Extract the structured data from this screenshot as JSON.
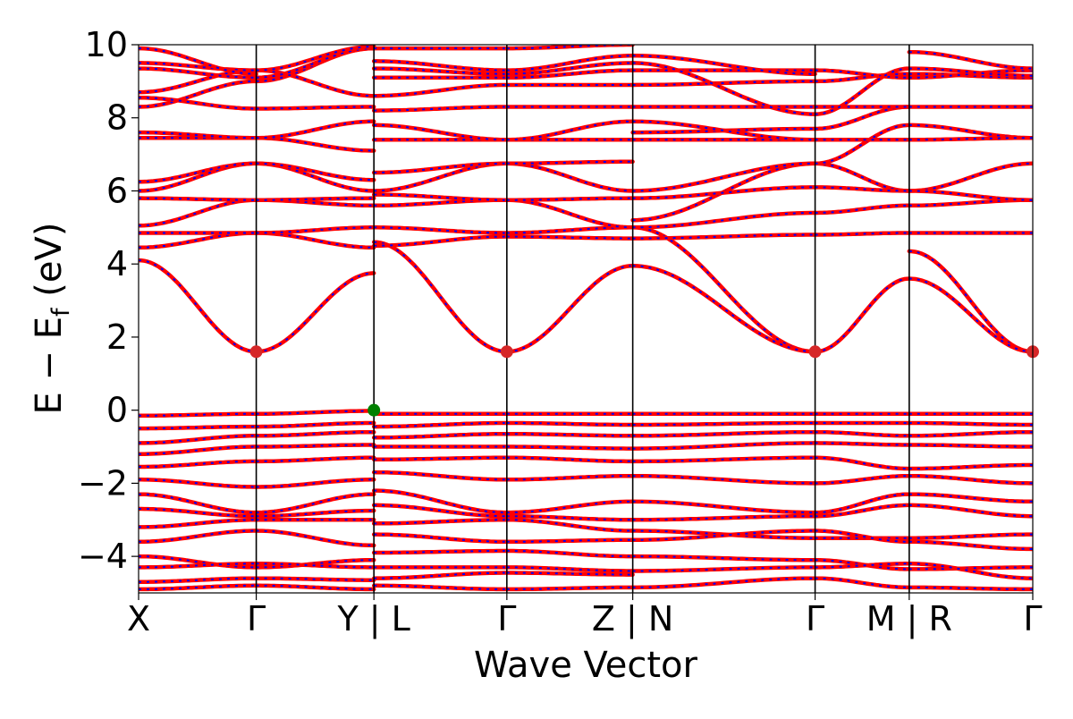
{
  "chart_data": {
    "type": "line",
    "title": "",
    "xlabel": "Wave Vector",
    "ylabel": "E − E",
    "ylabel_sub": "f",
    "ylabel_unit": " (eV)",
    "ylim": [
      -5,
      10
    ],
    "yticks": [
      -4,
      -2,
      0,
      2,
      4,
      6,
      8,
      10
    ],
    "ytick_labels": [
      "−4",
      "−2",
      "0",
      "2",
      "4",
      "6",
      "8",
      "10"
    ],
    "grid": false,
    "kpath_ticks": [
      {
        "label": "X",
        "x": 0.0
      },
      {
        "label": "Γ",
        "x": 1.0
      },
      {
        "label": "Y | L",
        "x": 2.0
      },
      {
        "label": "Γ",
        "x": 3.13
      },
      {
        "label": "Z | N",
        "x": 4.2
      },
      {
        "label": "Γ",
        "x": 5.75
      },
      {
        "label": "M | R",
        "x": 6.55
      },
      {
        "label": "Γ",
        "x": 7.6
      }
    ],
    "xlim": [
      0,
      7.6
    ],
    "colors": {
      "band_main": "#ff0000",
      "band_overlay": "#0000ff",
      "cbm": "#d62728",
      "vbm": "#008000"
    },
    "cbm_points": [
      {
        "x": 1.0,
        "y": 1.6
      },
      {
        "x": 3.13,
        "y": 1.6
      },
      {
        "x": 5.75,
        "y": 1.6
      },
      {
        "x": 7.6,
        "y": 1.6
      }
    ],
    "vbm_point": {
      "x": 2.0,
      "y": 0.0
    },
    "segments": [
      {
        "from": "X",
        "to": "Γ",
        "x0": 0.0,
        "x1": 1.0,
        "bands": [
          [
            4.1,
            1.6
          ],
          [
            -0.15,
            -0.1
          ],
          [
            -0.5,
            -0.45
          ],
          [
            -0.9,
            -0.7
          ],
          [
            -1.2,
            -1.0
          ],
          [
            -1.55,
            -1.4
          ],
          [
            -1.9,
            -2.1
          ],
          [
            -2.3,
            -2.8
          ],
          [
            -2.7,
            -2.9
          ],
          [
            -3.2,
            -3.0
          ],
          [
            -3.6,
            -3.3
          ],
          [
            -4.0,
            -4.3
          ],
          [
            -4.3,
            -4.2
          ],
          [
            -4.7,
            -4.6
          ],
          [
            -4.9,
            -4.8
          ],
          [
            4.45,
            4.85
          ],
          [
            4.85,
            4.85
          ],
          [
            5.05,
            5.75
          ],
          [
            5.8,
            5.75
          ],
          [
            6.0,
            6.75
          ],
          [
            6.25,
            6.75
          ],
          [
            7.45,
            7.45
          ],
          [
            7.6,
            7.45
          ],
          [
            8.3,
            9.0
          ],
          [
            8.55,
            8.25
          ],
          [
            8.7,
            9.3
          ],
          [
            9.35,
            9.1
          ],
          [
            9.5,
            9.3
          ],
          [
            9.9,
            9.2
          ]
        ]
      },
      {
        "from": "Γ",
        "to": "Y",
        "x0": 1.0,
        "x1": 2.0,
        "bands": [
          [
            1.6,
            3.75
          ],
          [
            -0.1,
            -0.02
          ],
          [
            -0.45,
            -0.35
          ],
          [
            -0.7,
            -0.6
          ],
          [
            -1.0,
            -0.95
          ],
          [
            -1.4,
            -1.3
          ],
          [
            -2.1,
            -1.9
          ],
          [
            -2.8,
            -2.3
          ],
          [
            -2.9,
            -2.75
          ],
          [
            -3.0,
            -3.0
          ],
          [
            -3.3,
            -3.7
          ],
          [
            -4.3,
            -4.1
          ],
          [
            -4.2,
            -4.3
          ],
          [
            -4.6,
            -4.65
          ],
          [
            -4.8,
            -4.9
          ],
          [
            4.85,
            4.45
          ],
          [
            4.85,
            5.0
          ],
          [
            5.75,
            5.6
          ],
          [
            5.75,
            5.8
          ],
          [
            6.75,
            6.0
          ],
          [
            6.75,
            6.3
          ],
          [
            7.45,
            7.1
          ],
          [
            7.45,
            7.9
          ],
          [
            9.0,
            9.9
          ],
          [
            8.25,
            8.3
          ],
          [
            9.3,
            8.6
          ],
          [
            9.1,
            9.9
          ],
          [
            9.3,
            9.95
          ]
        ]
      },
      {
        "from": "L",
        "to": "Γ",
        "x0": 2.0,
        "x1": 3.13,
        "bands": [
          [
            4.6,
            1.6
          ],
          [
            -0.1,
            -0.1
          ],
          [
            -0.45,
            -0.35
          ],
          [
            -0.75,
            -0.65
          ],
          [
            -1.0,
            -1.0
          ],
          [
            -1.35,
            -1.3
          ],
          [
            -1.7,
            -1.9
          ],
          [
            -2.2,
            -2.8
          ],
          [
            -2.6,
            -2.9
          ],
          [
            -3.1,
            -3.0
          ],
          [
            -3.4,
            -3.6
          ],
          [
            -3.9,
            -3.85
          ],
          [
            -4.3,
            -4.3
          ],
          [
            -4.6,
            -4.45
          ],
          [
            -4.8,
            -4.9
          ],
          [
            4.5,
            4.75
          ],
          [
            5.0,
            4.85
          ],
          [
            5.6,
            5.75
          ],
          [
            5.9,
            5.75
          ],
          [
            6.0,
            6.75
          ],
          [
            6.5,
            6.75
          ],
          [
            7.4,
            7.4
          ],
          [
            7.8,
            7.4
          ],
          [
            8.2,
            8.3
          ],
          [
            8.6,
            8.9
          ],
          [
            9.1,
            9.1
          ],
          [
            9.35,
            9.2
          ],
          [
            9.55,
            9.3
          ],
          [
            9.9,
            9.9
          ]
        ]
      },
      {
        "from": "Γ",
        "to": "Z",
        "x0": 3.13,
        "x1": 4.2,
        "bands": [
          [
            1.6,
            3.95
          ],
          [
            -0.1,
            -0.1
          ],
          [
            -0.35,
            -0.4
          ],
          [
            -0.65,
            -0.7
          ],
          [
            -1.0,
            -1.05
          ],
          [
            -1.3,
            -1.4
          ],
          [
            -1.9,
            -1.8
          ],
          [
            -2.8,
            -2.5
          ],
          [
            -2.9,
            -3.0
          ],
          [
            -3.0,
            -3.3
          ],
          [
            -3.6,
            -3.55
          ],
          [
            -3.85,
            -4.0
          ],
          [
            -4.3,
            -4.4
          ],
          [
            -4.45,
            -4.5
          ],
          [
            -4.9,
            -4.85
          ],
          [
            4.75,
            4.7
          ],
          [
            4.85,
            5.0
          ],
          [
            5.75,
            5.0
          ],
          [
            5.75,
            5.8
          ],
          [
            6.75,
            6.0
          ],
          [
            6.75,
            6.8
          ],
          [
            7.4,
            7.4
          ],
          [
            7.4,
            7.9
          ],
          [
            8.3,
            8.3
          ],
          [
            8.9,
            8.9
          ],
          [
            9.1,
            9.3
          ],
          [
            9.2,
            9.5
          ],
          [
            9.3,
            9.7
          ],
          [
            9.9,
            10.0
          ]
        ]
      },
      {
        "from": "N",
        "to": "Γ",
        "x0": 4.2,
        "x1": 5.75,
        "bands": [
          [
            5.0,
            1.6
          ],
          [
            3.95,
            1.6
          ],
          [
            -0.1,
            -0.1
          ],
          [
            -0.4,
            -0.35
          ],
          [
            -0.7,
            -0.6
          ],
          [
            -1.05,
            -0.9
          ],
          [
            -1.4,
            -1.3
          ],
          [
            -1.8,
            -2.0
          ],
          [
            -2.5,
            -2.8
          ],
          [
            -3.0,
            -2.9
          ],
          [
            -3.3,
            -3.5
          ],
          [
            -3.55,
            -3.3
          ],
          [
            -4.0,
            -4.1
          ],
          [
            -4.4,
            -4.3
          ],
          [
            -4.85,
            -4.6
          ],
          [
            4.7,
            4.8
          ],
          [
            5.0,
            5.4
          ],
          [
            5.2,
            6.75
          ],
          [
            5.8,
            6.1
          ],
          [
            6.0,
            6.75
          ],
          [
            7.4,
            7.4
          ],
          [
            7.6,
            7.7
          ],
          [
            7.9,
            7.4
          ],
          [
            8.3,
            8.3
          ],
          [
            8.9,
            9.0
          ],
          [
            9.3,
            9.3
          ],
          [
            9.5,
            8.1
          ],
          [
            9.7,
            9.2
          ]
        ]
      },
      {
        "from": "Γ",
        "to": "M",
        "x0": 5.75,
        "x1": 6.55,
        "bands": [
          [
            1.6,
            3.6
          ],
          [
            -0.1,
            -0.1
          ],
          [
            -0.35,
            -0.35
          ],
          [
            -0.6,
            -0.7
          ],
          [
            -0.9,
            -0.95
          ],
          [
            -1.3,
            -1.6
          ],
          [
            -2.0,
            -1.8
          ],
          [
            -2.8,
            -2.3
          ],
          [
            -2.9,
            -2.6
          ],
          [
            -3.5,
            -3.5
          ],
          [
            -3.3,
            -3.6
          ],
          [
            -4.1,
            -4.35
          ],
          [
            -4.3,
            -4.2
          ],
          [
            -4.6,
            -4.85
          ],
          [
            4.8,
            4.85
          ],
          [
            5.4,
            5.6
          ],
          [
            6.75,
            6.0
          ],
          [
            6.1,
            6.0
          ],
          [
            6.75,
            7.8
          ],
          [
            7.4,
            7.4
          ],
          [
            7.7,
            8.3
          ],
          [
            8.3,
            8.3
          ],
          [
            9.0,
            9.2
          ],
          [
            9.3,
            9.1
          ],
          [
            8.1,
            9.35
          ]
        ]
      },
      {
        "from": "R",
        "to": "Γ",
        "x0": 6.55,
        "x1": 7.6,
        "bands": [
          [
            4.35,
            1.6
          ],
          [
            3.6,
            1.6
          ],
          [
            -0.1,
            -0.1
          ],
          [
            -0.35,
            -0.4
          ],
          [
            -0.7,
            -0.6
          ],
          [
            -0.95,
            -1.0
          ],
          [
            -1.6,
            -1.5
          ],
          [
            -1.8,
            -2.0
          ],
          [
            -2.3,
            -2.5
          ],
          [
            -2.6,
            -2.9
          ],
          [
            -3.5,
            -3.4
          ],
          [
            -3.6,
            -3.8
          ],
          [
            -4.35,
            -4.3
          ],
          [
            -4.2,
            -4.6
          ],
          [
            -4.85,
            -4.9
          ],
          [
            4.85,
            4.85
          ],
          [
            5.6,
            5.75
          ],
          [
            6.0,
            6.75
          ],
          [
            6.0,
            5.75
          ],
          [
            7.8,
            7.45
          ],
          [
            7.4,
            7.45
          ],
          [
            8.3,
            8.3
          ],
          [
            9.2,
            9.1
          ],
          [
            9.1,
            9.3
          ],
          [
            9.35,
            9.15
          ],
          [
            9.8,
            9.35
          ]
        ]
      }
    ]
  }
}
